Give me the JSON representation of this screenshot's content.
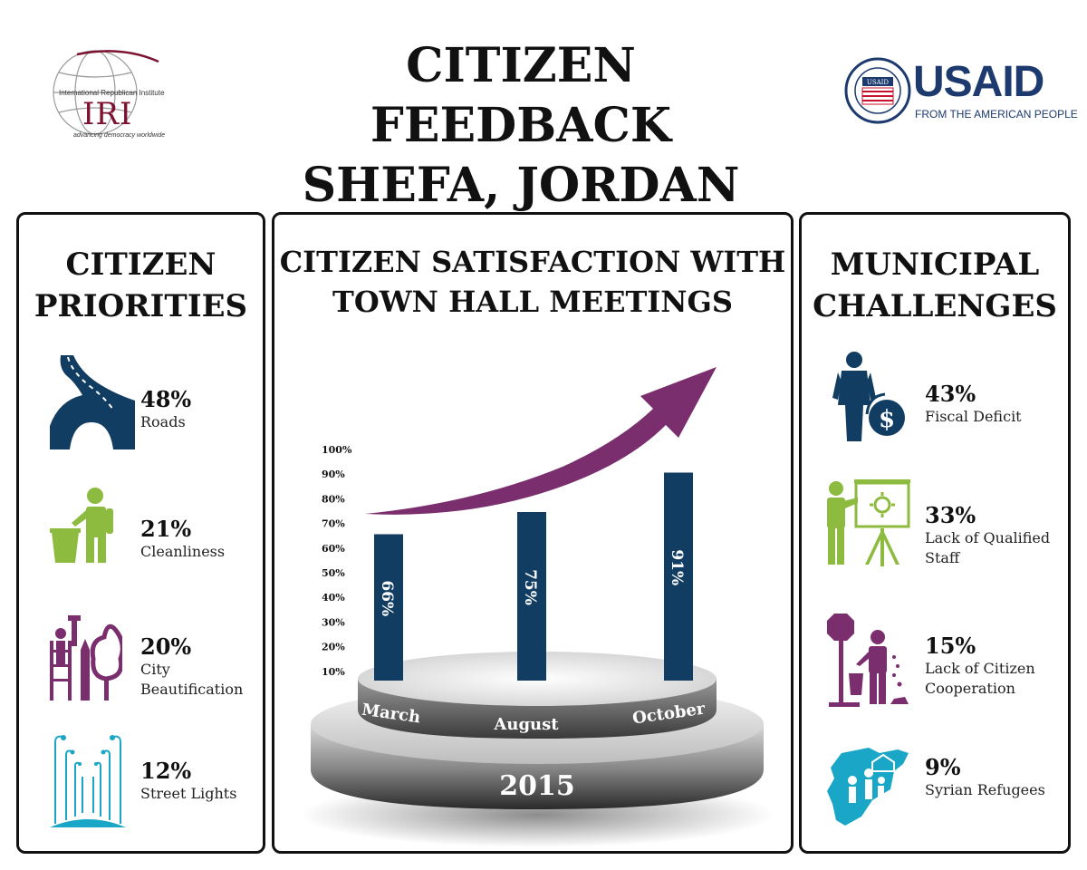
{
  "header": {
    "title_line1": "CITIZEN FEEDBACK",
    "title_line2": "SHEFA, JORDAN",
    "iri_logo": {
      "top_text": "International Republican Institute",
      "acronym": "IRI",
      "tagline": "advancing democracy worldwide"
    },
    "usaid_logo": {
      "seal_text": "UNITED STATES AGENCY · INTERNATIONAL DEVELOPMENT",
      "seal_inner": "USAID",
      "wordmark": "USAID",
      "tagline": "FROM THE AMERICAN PEOPLE"
    }
  },
  "priorities": {
    "title_line1": "CITIZEN",
    "title_line2": "PRIORITIES",
    "items": [
      {
        "value": "48%",
        "label": "Roads",
        "icon": "road-icon",
        "color": "#123d62"
      },
      {
        "value": "21%",
        "label": "Cleanliness",
        "icon": "trash-person-icon",
        "color": "#8dbb3f"
      },
      {
        "value": "20%",
        "label": "City Beautification",
        "icon": "painter-tree-icon",
        "color": "#7b2e6e"
      },
      {
        "value": "12%",
        "label": "Street Lights",
        "icon": "street-lights-icon",
        "color": "#1aa7c7"
      }
    ]
  },
  "satisfaction": {
    "title_line1": "CITIZEN SATISFACTION WITH",
    "title_line2": "TOWN HALL MEETINGS",
    "year": "2015"
  },
  "chart_data": {
    "type": "bar",
    "title": "CITIZEN SATISFACTION WITH TOWN HALL MEETINGS",
    "categories": [
      "March",
      "August",
      "October"
    ],
    "values": [
      66,
      75,
      91
    ],
    "value_labels": [
      "66%",
      "75%",
      "91%"
    ],
    "y_ticks": [
      "10%",
      "20%",
      "30%",
      "40%",
      "50%",
      "60%",
      "70%",
      "80%",
      "90%",
      "100%"
    ],
    "ylim": [
      0,
      100
    ],
    "bar_color": "#123d62",
    "arrow_color": "#7b2e6e",
    "grid": false
  },
  "challenges": {
    "title_line1": "MUNICIPAL",
    "title_line2": "CHALLENGES",
    "items": [
      {
        "value": "43%",
        "label_line1": "Fiscal Deficit",
        "label_line2": "",
        "icon": "businessman-dollar-icon",
        "color": "#123d62"
      },
      {
        "value": "33%",
        "label_line1": "Lack of Qualified",
        "label_line2": "Staff",
        "icon": "presenter-board-icon",
        "color": "#8dbb3f"
      },
      {
        "value": "15%",
        "label_line1": "Lack of Citizen",
        "label_line2": "Cooperation",
        "icon": "stop-sign-person-icon",
        "color": "#7b2e6e"
      },
      {
        "value": "9%",
        "label_line1": "Syrian Refugees",
        "label_line2": "",
        "icon": "syria-map-refugees-icon",
        "color": "#1aa7c7"
      }
    ]
  }
}
